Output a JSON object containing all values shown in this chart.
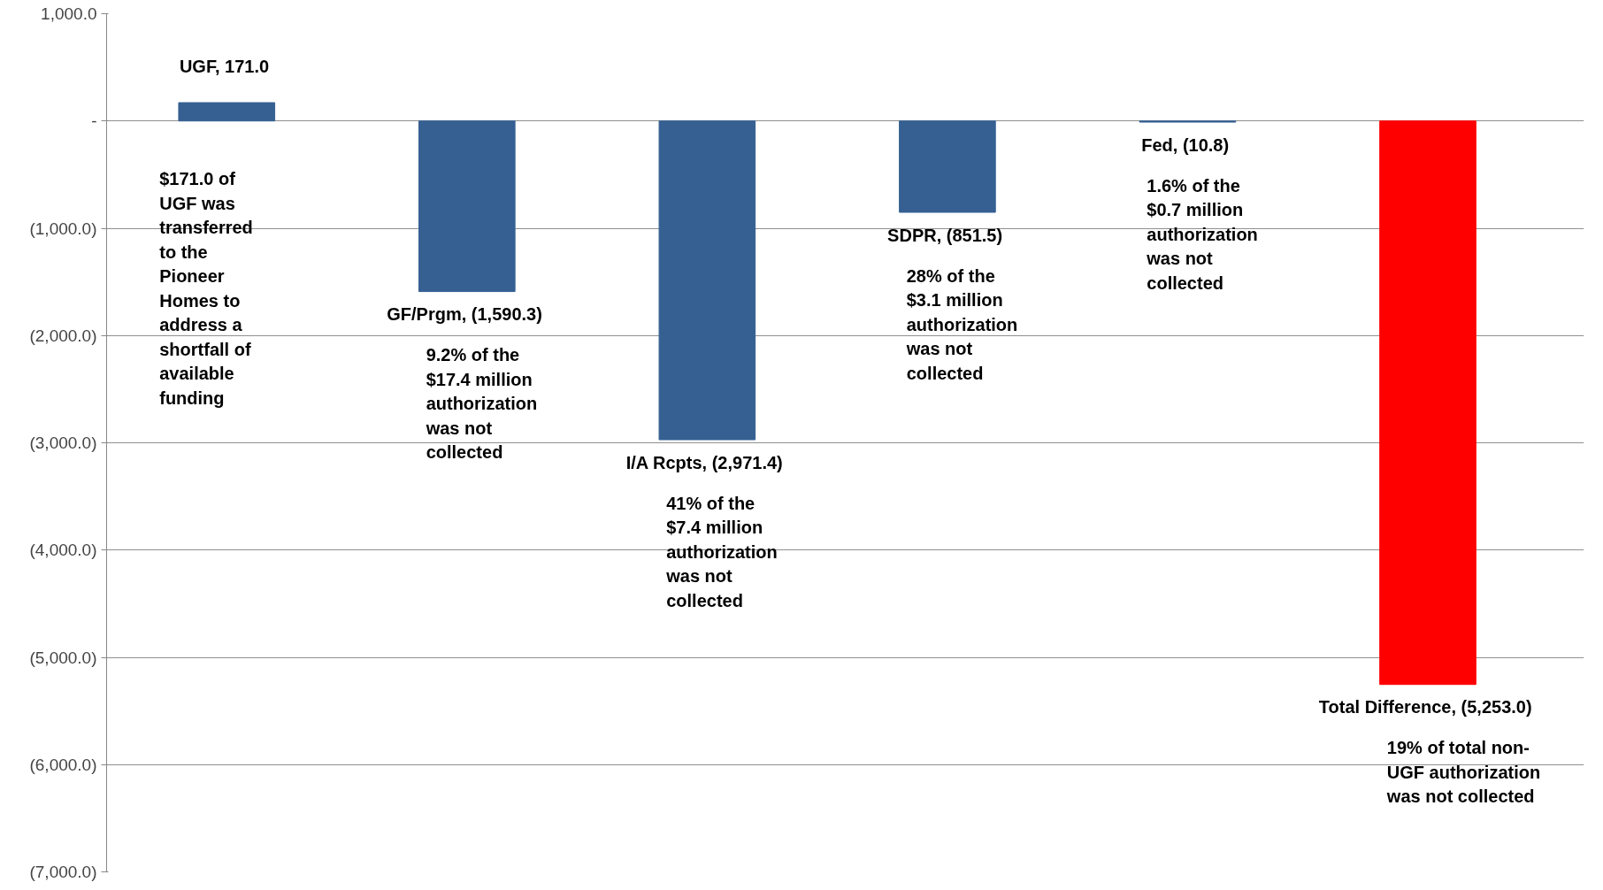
{
  "chart_data": {
    "type": "bar",
    "categories": [
      null,
      null,
      null,
      null,
      null,
      null
    ],
    "values": [
      171.0,
      -1590.3,
      -2971.4,
      -851.5,
      -10.8,
      -5253.0
    ],
    "colors": [
      "#366092",
      "#366092",
      "#366092",
      "#366092",
      "#366092",
      "#ff0000"
    ],
    "value_labels": [
      "UGF,  171.0",
      "GF/Prgm,  (1,590.3)",
      "I/A Rcpts,  (2,971.4)",
      "SDPR,  (851.5)",
      "Fed,  (10.8)",
      "Total Difference,  (5,253.0)"
    ],
    "annotations": [
      "$171.0 of\nUGF was\ntransferred\nto the\nPioneer\nHomes to\naddress a\nshortfall of\navailable\nfunding",
      "9.2% of the\n$17.4 million\nauthorization\nwas not\ncollected",
      "41% of the\n$7.4 million\nauthorization\nwas not\ncollected",
      "28% of the\n$3.1 million\nauthorization\nwas not\ncollected",
      "1.6% of the\n$0.7 million\nauthorization\nwas not\ncollected",
      "19% of total non-\nUGF authorization\nwas not collected"
    ],
    "ylim": [
      -7000,
      1000
    ],
    "yticks": [
      {
        "value": 1000,
        "label": "1,000.0"
      },
      {
        "value": 0,
        "label": "-"
      },
      {
        "value": -1000,
        "label": "(1,000.0)"
      },
      {
        "value": -2000,
        "label": "(2,000.0)"
      },
      {
        "value": -3000,
        "label": "(3,000.0)"
      },
      {
        "value": -4000,
        "label": "(4,000.0)"
      },
      {
        "value": -5000,
        "label": "(5,000.0)"
      },
      {
        "value": -6000,
        "label": "(6,000.0)"
      },
      {
        "value": -7000,
        "label": "(7,000.0)"
      }
    ],
    "grid": "y",
    "tick_labels": "y"
  }
}
